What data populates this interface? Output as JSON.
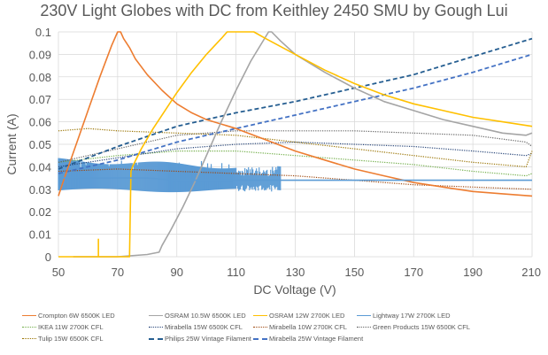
{
  "chart_data": {
    "type": "line",
    "title": "230V Light Globes with DC from Keithley 2450 SMU by Gough Lui",
    "xlabel": "DC Voltage (V)",
    "ylabel": "Current (A)",
    "xlim": [
      50,
      210
    ],
    "ylim": [
      0,
      0.1
    ],
    "xticks": [
      "50",
      "70",
      "90",
      "110",
      "130",
      "150",
      "170",
      "190",
      "210"
    ],
    "yticks": [
      "0",
      "0.01",
      "0.02",
      "0.03",
      "0.04",
      "0.05",
      "0.06",
      "0.07",
      "0.08",
      "0.09",
      "0.1"
    ],
    "grid": true,
    "legend_position": "bottom",
    "series": [
      {
        "name": "Crompton 6W 6500K LED",
        "color": "#ED7D31",
        "style": "solid",
        "x": [
          50,
          52,
          56,
          60,
          64,
          68,
          70,
          71,
          72,
          74,
          76,
          80,
          85,
          90,
          95,
          100,
          110,
          120,
          130,
          140,
          150,
          160,
          170,
          180,
          190,
          200,
          210
        ],
        "y": [
          0.027,
          0.035,
          0.05,
          0.065,
          0.08,
          0.094,
          0.1,
          0.1,
          0.097,
          0.093,
          0.088,
          0.081,
          0.074,
          0.068,
          0.064,
          0.061,
          0.057,
          0.052,
          0.047,
          0.043,
          0.039,
          0.036,
          0.033,
          0.031,
          0.029,
          0.028,
          0.027
        ]
      },
      {
        "name": "OSRAM 10.5W 6500K LED",
        "color": "#A5A5A5",
        "style": "solid",
        "x": [
          55,
          70,
          80,
          84,
          85,
          88,
          92,
          96,
          100,
          105,
          110,
          115,
          121,
          122,
          125,
          130,
          140,
          150,
          160,
          170,
          180,
          190,
          200,
          208,
          210
        ],
        "y": [
          0,
          0,
          0.001,
          0.002,
          0.005,
          0.012,
          0.022,
          0.033,
          0.045,
          0.06,
          0.074,
          0.087,
          0.1,
          0.1,
          0.096,
          0.09,
          0.082,
          0.075,
          0.069,
          0.065,
          0.061,
          0.058,
          0.055,
          0.054,
          0.055
        ]
      },
      {
        "name": "OSRAM 12W 2700K LED",
        "color": "#FFC000",
        "style": "solid",
        "x": [
          50,
          74,
          74.5,
          75,
          78,
          82,
          86,
          90,
          95,
          100,
          105,
          107,
          116,
          120,
          130,
          140,
          150,
          160,
          170,
          180,
          190,
          200,
          210
        ],
        "y": [
          0,
          0,
          0.038,
          0.04,
          0.048,
          0.057,
          0.065,
          0.073,
          0.082,
          0.09,
          0.097,
          0.1,
          0.1,
          0.097,
          0.09,
          0.083,
          0.077,
          0.072,
          0.068,
          0.065,
          0.062,
          0.06,
          0.058
        ]
      },
      {
        "name": "Lightway 17W 2700K LED",
        "color": "#5B9BD5",
        "style": "solid",
        "x": [
          50,
          60,
          70,
          80,
          90,
          100,
          110,
          120,
          130,
          140,
          150,
          160,
          170,
          180,
          190,
          200,
          210
        ],
        "y": [
          0.035,
          0.035,
          0.035,
          0.035,
          0.034,
          0.034,
          0.034,
          0.034,
          0.034,
          0.034,
          0.034,
          0.034,
          0.034,
          0.034,
          0.034,
          0.034,
          0.034
        ]
      },
      {
        "name": "IKEA 11W 2700K CFL",
        "color": "#70AD47",
        "style": "dotted",
        "x": [
          50,
          70,
          90,
          110,
          130,
          150,
          170,
          190,
          208,
          210
        ],
        "y": [
          0.042,
          0.045,
          0.047,
          0.047,
          0.045,
          0.043,
          0.041,
          0.038,
          0.036,
          0.037
        ]
      },
      {
        "name": "Mirabella 15W 6500K CFL",
        "color": "#264478",
        "style": "dotted",
        "x": [
          50,
          70,
          90,
          110,
          130,
          150,
          170,
          190,
          208,
          210
        ],
        "y": [
          0.04,
          0.044,
          0.048,
          0.05,
          0.051,
          0.05,
          0.049,
          0.047,
          0.045,
          0.046
        ]
      },
      {
        "name": "Mirabella 10W 2700K CFL",
        "color": "#9E480E",
        "style": "dotted",
        "x": [
          50,
          70,
          90,
          110,
          130,
          150,
          170,
          190,
          210
        ],
        "y": [
          0.038,
          0.039,
          0.038,
          0.037,
          0.036,
          0.034,
          0.032,
          0.031,
          0.03
        ]
      },
      {
        "name": "Green Products 15W 6500K CFL",
        "color": "#636363",
        "style": "dotted",
        "x": [
          50,
          70,
          90,
          110,
          130,
          150,
          170,
          190,
          208,
          210
        ],
        "y": [
          0.042,
          0.048,
          0.054,
          0.056,
          0.056,
          0.056,
          0.055,
          0.054,
          0.051,
          0.049
        ]
      },
      {
        "name": "Tulip 15W 6500K CFL",
        "color": "#997300",
        "style": "dotted",
        "x": [
          50,
          60,
          70,
          90,
          110,
          130,
          150,
          170,
          190,
          208,
          210
        ],
        "y": [
          0.056,
          0.057,
          0.056,
          0.055,
          0.054,
          0.051,
          0.048,
          0.045,
          0.042,
          0.04,
          0.047
        ]
      },
      {
        "name": "Philips 25W Vintage Filament",
        "color": "#255E91",
        "style": "dashed",
        "x": [
          50,
          70,
          90,
          110,
          130,
          150,
          170,
          190,
          210
        ],
        "y": [
          0.039,
          0.049,
          0.058,
          0.064,
          0.069,
          0.075,
          0.081,
          0.089,
          0.097
        ]
      },
      {
        "name": "Mirabella 25W Vintage Filament",
        "color": "#4472C4",
        "style": "dashed",
        "x": [
          50,
          70,
          90,
          110,
          130,
          150,
          170,
          190,
          210
        ],
        "y": [
          0.037,
          0.043,
          0.051,
          0.057,
          0.063,
          0.069,
          0.075,
          0.082,
          0.09
        ]
      }
    ],
    "annotations": {
      "lightway_noise_band": {
        "x_range": [
          50,
          125
        ],
        "y_range": [
          0.029,
          0.043
        ]
      },
      "osram12w_spike": {
        "x": 63.5,
        "y": 0.008
      }
    }
  }
}
